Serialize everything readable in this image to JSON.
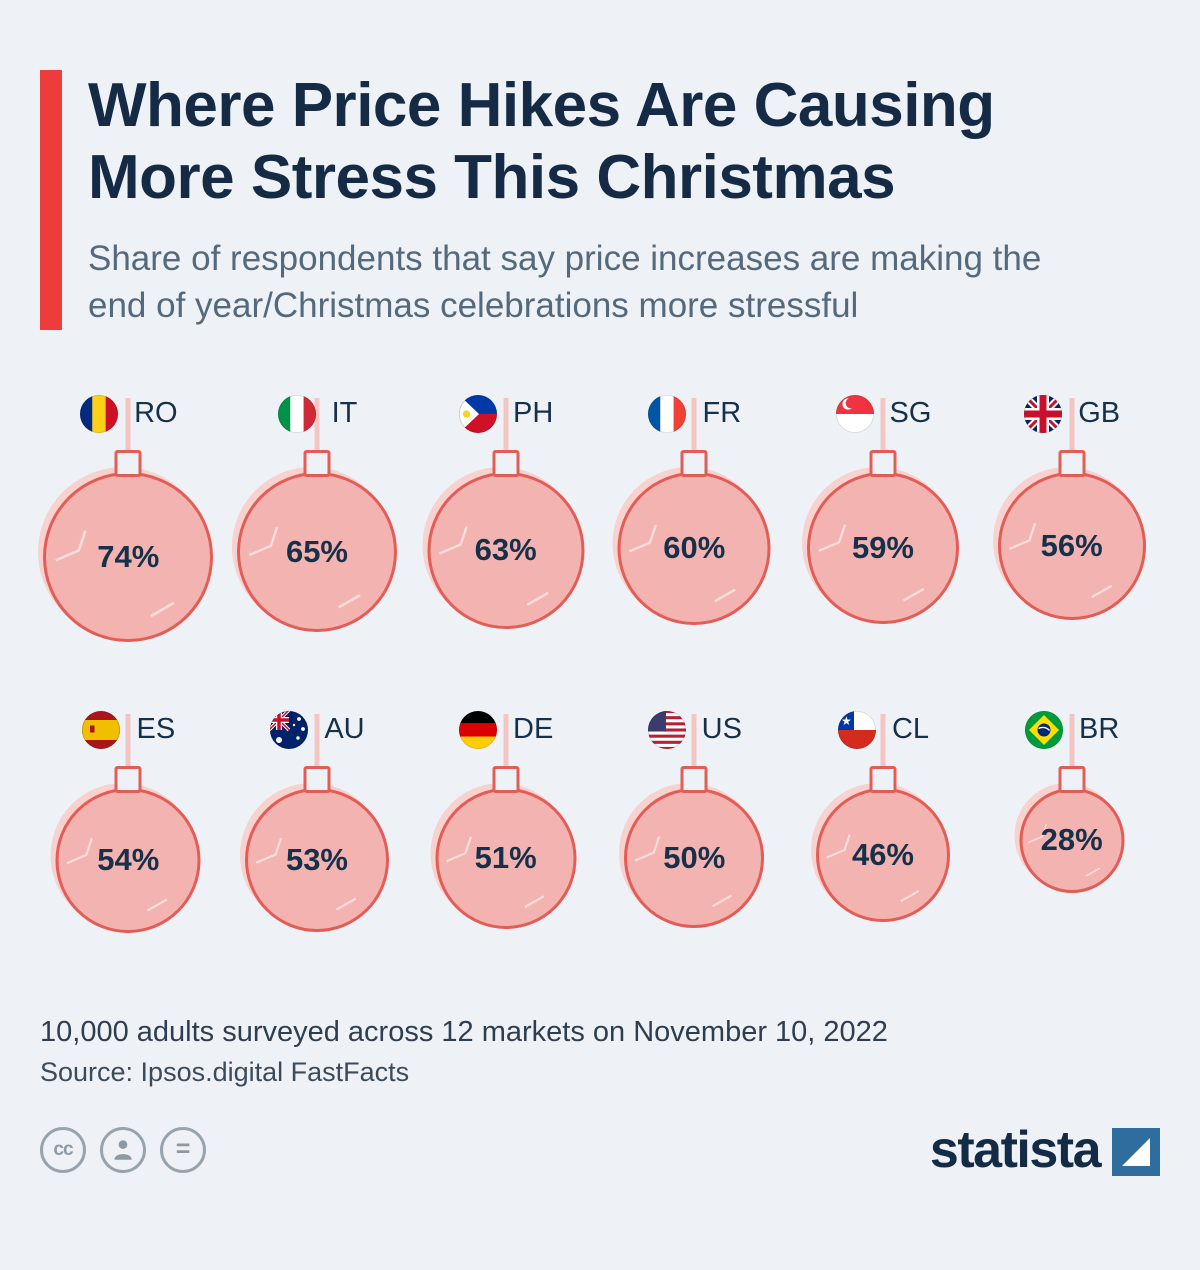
{
  "colors": {
    "background": "#eef2f6",
    "accent_red": "#ee3c3c",
    "navy": "#152b45",
    "ornament_fill": "#f3b4b1",
    "ornament_stroke": "#e35d56",
    "subtitle_gray": "#55697d"
  },
  "header": {
    "title_line1": "Where Price Hikes Are Causing",
    "title_line2": "More Stress This Christmas",
    "subtitle": "Share of respondents that say price increases are making the end of year/Christmas celebrations more stressful"
  },
  "chart_data": {
    "type": "bar",
    "style": "christmas-ornament-bubbles",
    "title": "Where Price Hikes Are Causing More Stress This Christmas",
    "subtitle": "Share of respondents that say price increases are making the end of year/Christmas celebrations more stressful",
    "unit": "%",
    "categories": [
      "RO",
      "IT",
      "PH",
      "FR",
      "SG",
      "GB",
      "ES",
      "AU",
      "DE",
      "US",
      "CL",
      "BR"
    ],
    "values": [
      74,
      65,
      63,
      60,
      59,
      56,
      54,
      53,
      51,
      50,
      46,
      28
    ],
    "items": [
      {
        "code": "RO",
        "value": 74,
        "label": "74%"
      },
      {
        "code": "IT",
        "value": 65,
        "label": "65%"
      },
      {
        "code": "PH",
        "value": 63,
        "label": "63%"
      },
      {
        "code": "FR",
        "value": 60,
        "label": "60%"
      },
      {
        "code": "SG",
        "value": 59,
        "label": "59%"
      },
      {
        "code": "GB",
        "value": 56,
        "label": "56%"
      },
      {
        "code": "ES",
        "value": 54,
        "label": "54%"
      },
      {
        "code": "AU",
        "value": 53,
        "label": "53%"
      },
      {
        "code": "DE",
        "value": 51,
        "label": "51%"
      },
      {
        "code": "US",
        "value": 50,
        "label": "50%"
      },
      {
        "code": "CL",
        "value": 46,
        "label": "46%"
      },
      {
        "code": "BR",
        "value": 28,
        "label": "28%"
      }
    ],
    "layout": {
      "columns": 6,
      "rows": 2,
      "grid": false,
      "legend": "none"
    }
  },
  "footer": {
    "note": "10,000 adults surveyed across 12 markets on November 10, 2022",
    "source": "Source: Ipsos.digital FastFacts",
    "brand": "statista",
    "license_icons": [
      {
        "name": "cc-icon",
        "glyph": "cc"
      },
      {
        "name": "attribution-icon",
        "glyph": ""
      },
      {
        "name": "equals-icon",
        "glyph": "="
      }
    ]
  }
}
